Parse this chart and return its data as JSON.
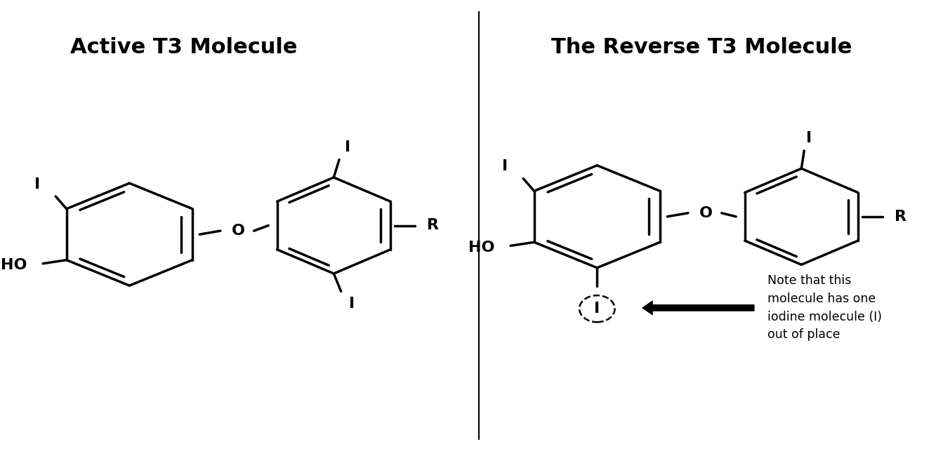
{
  "title_left": "Active T3 Molecule",
  "title_right": "The Reverse T3 Molecule",
  "title_fontsize": 22,
  "title_fontweight": "bold",
  "background_color": "#ffffff",
  "line_color": "#000000",
  "line_width": 2.5,
  "annotation_text": "Note that this\nmolecule has one\niodine molecule (I)\nout of place"
}
